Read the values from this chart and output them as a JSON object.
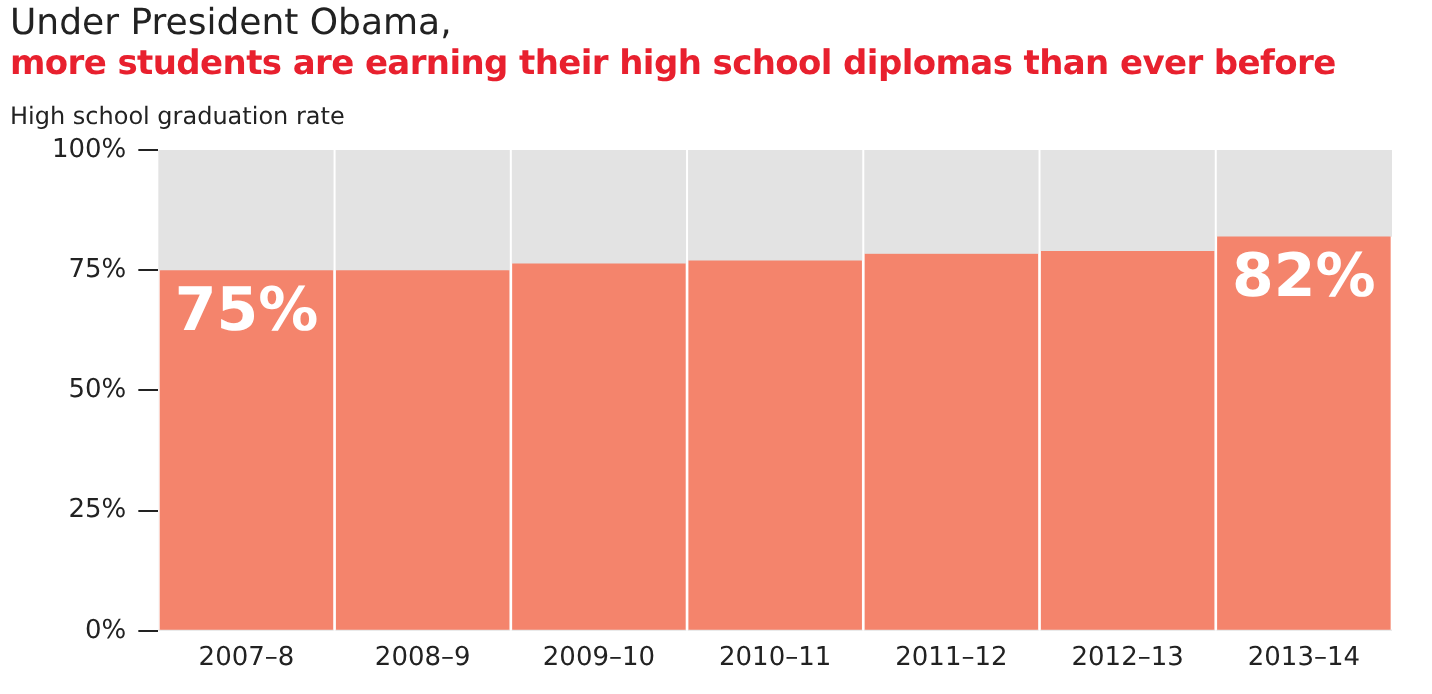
{
  "chart_data": {
    "type": "bar",
    "title": "Under President Obama,",
    "subtitle": "more students are earning their high school diplomas than ever before",
    "ylabel": "High school graduation rate",
    "categories": [
      "2007–8",
      "2008–9",
      "2009–10",
      "2010–11",
      "2011–12",
      "2012–13",
      "2013–14"
    ],
    "values": [
      75,
      75,
      76.4,
      77,
      78.4,
      79,
      82
    ],
    "value_labels": [
      "75%",
      null,
      null,
      null,
      null,
      null,
      "82%"
    ],
    "color": "#f4846c",
    "ylim": [
      0,
      100
    ],
    "yticks": [
      {
        "value": 0,
        "label": "0%"
      },
      {
        "value": 25,
        "label": "25%"
      },
      {
        "value": 50,
        "label": "50%"
      },
      {
        "value": 75,
        "label": "75%"
      },
      {
        "value": 100,
        "label": "100%"
      }
    ],
    "grid": false,
    "legend": false
  }
}
